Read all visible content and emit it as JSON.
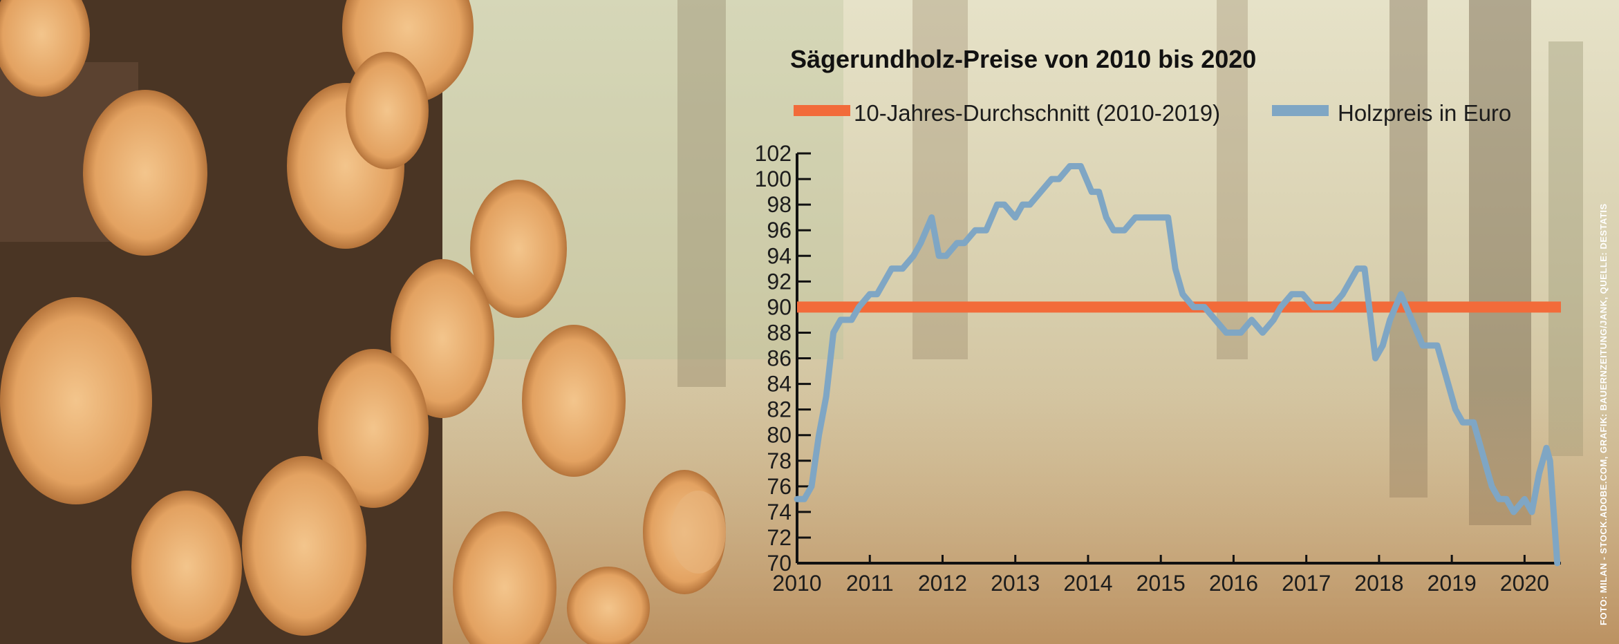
{
  "colors": {
    "average_line": "#f26b3a",
    "price_line": "#7fa6c4",
    "axis": "#111111"
  },
  "chart_data": {
    "type": "line",
    "title": "Sägerundholz-Preise von 2010 bis 2020",
    "xlabel": "",
    "ylabel": "",
    "xlim": [
      2010,
      2020.5
    ],
    "ylim": [
      70,
      102
    ],
    "x_ticks": [
      2010,
      2011,
      2012,
      2013,
      2014,
      2015,
      2016,
      2017,
      2018,
      2019,
      2020
    ],
    "y_ticks": [
      70,
      72,
      74,
      76,
      78,
      80,
      82,
      84,
      86,
      88,
      90,
      92,
      94,
      96,
      98,
      100,
      102
    ],
    "grid": false,
    "legend": "top",
    "series": [
      {
        "name": "10-Jahres-Durchschnitt (2010-2019)",
        "x": [
          2010,
          2020.5
        ],
        "values": [
          90,
          90
        ]
      },
      {
        "name": "Holzpreis in Euro",
        "x": [
          2010.0,
          2010.1,
          2010.2,
          2010.3,
          2010.4,
          2010.5,
          2010.6,
          2010.75,
          2010.85,
          2011.0,
          2011.1,
          2011.2,
          2011.3,
          2011.45,
          2011.6,
          2011.7,
          2011.85,
          2011.95,
          2012.05,
          2012.2,
          2012.3,
          2012.45,
          2012.6,
          2012.75,
          2012.85,
          2013.0,
          2013.1,
          2013.2,
          2013.35,
          2013.5,
          2013.6,
          2013.75,
          2013.9,
          2014.05,
          2014.15,
          2014.25,
          2014.35,
          2014.5,
          2014.65,
          2014.8,
          2015.0,
          2015.1,
          2015.2,
          2015.3,
          2015.45,
          2015.6,
          2015.75,
          2015.9,
          2016.1,
          2016.25,
          2016.4,
          2016.55,
          2016.65,
          2016.8,
          2016.95,
          2017.1,
          2017.2,
          2017.35,
          2017.5,
          2017.6,
          2017.7,
          2017.8,
          2017.95,
          2018.05,
          2018.15,
          2018.3,
          2018.45,
          2018.6,
          2018.7,
          2018.8,
          2018.95,
          2019.05,
          2019.15,
          2019.3,
          2019.45,
          2019.55,
          2019.65,
          2019.75,
          2019.85,
          2020.0,
          2020.1,
          2020.2,
          2020.3,
          2020.35,
          2020.45
        ],
        "values": [
          75,
          75,
          76,
          80,
          83,
          88,
          89,
          89,
          90,
          91,
          91,
          92,
          93,
          93,
          94,
          95,
          97,
          94,
          94,
          95,
          95,
          96,
          96,
          98,
          98,
          97,
          98,
          98,
          99,
          100,
          100,
          101,
          101,
          99,
          99,
          97,
          96,
          96,
          97,
          97,
          97,
          97,
          93,
          91,
          90,
          90,
          89,
          88,
          88,
          89,
          88,
          89,
          90,
          91,
          91,
          90,
          90,
          90,
          91,
          92,
          93,
          93,
          86,
          87,
          89,
          91,
          89,
          87,
          87,
          87,
          84,
          82,
          81,
          81,
          78,
          76,
          75,
          75,
          74,
          75,
          74,
          77,
          79,
          78,
          70
        ]
      }
    ]
  },
  "credit": "FOTO: MILAN - STOCK.ADOBE.COM, GRAFIK: BAUERNZEITUNG/JANK, QUELLE: DESTATIS"
}
